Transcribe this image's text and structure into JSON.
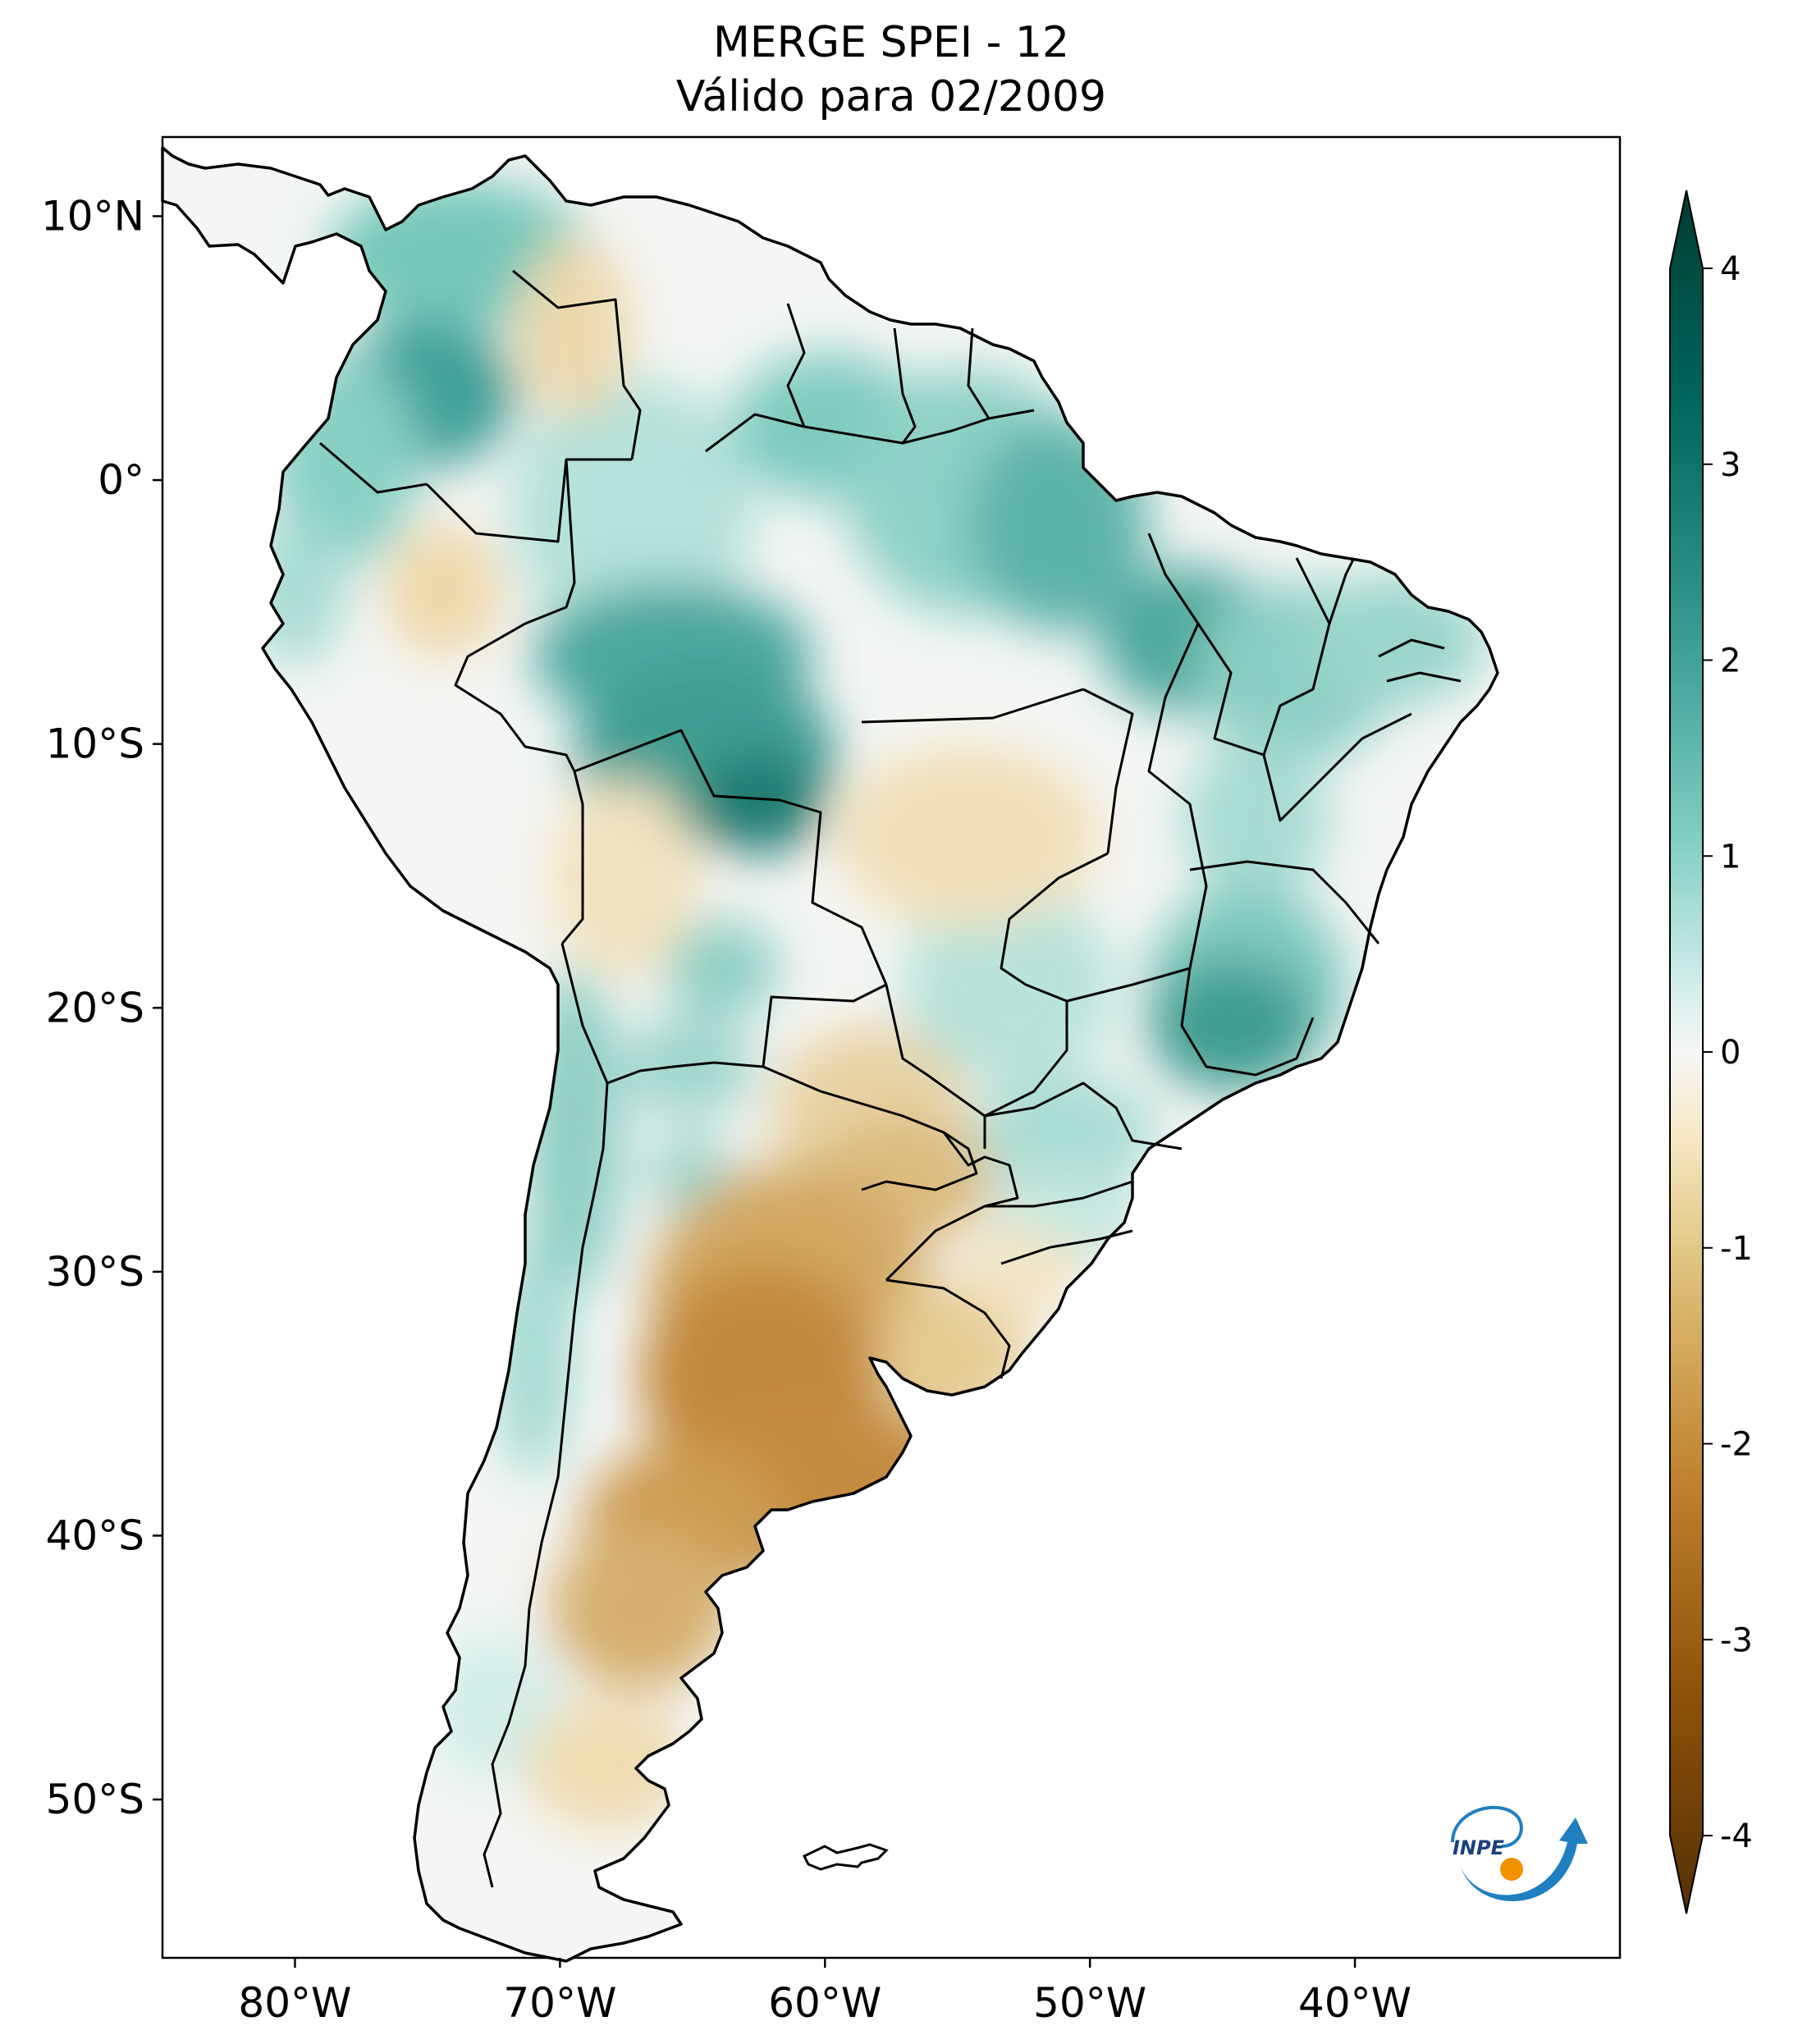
{
  "title": {
    "line1": "MERGE   SPEI - 12",
    "line2": "Válido para 02/2009"
  },
  "axes": {
    "lon_ticks": [
      {
        "value": -80,
        "label": "80°W"
      },
      {
        "value": -70,
        "label": "70°W"
      },
      {
        "value": -60,
        "label": "60°W"
      },
      {
        "value": -50,
        "label": "50°W"
      },
      {
        "value": -40,
        "label": "40°W"
      }
    ],
    "lat_ticks": [
      {
        "value": 10,
        "label": "10°N"
      },
      {
        "value": 0,
        "label": "0°"
      },
      {
        "value": -10,
        "label": "10°S"
      },
      {
        "value": -20,
        "label": "20°S"
      },
      {
        "value": -30,
        "label": "30°S"
      },
      {
        "value": -40,
        "label": "40°S"
      },
      {
        "value": -50,
        "label": "50°S"
      }
    ],
    "lon_range": [
      -85,
      -30
    ],
    "lat_range": [
      -56,
      13
    ]
  },
  "colorbar": {
    "ticks": [
      {
        "value": 4,
        "label": "4"
      },
      {
        "value": 3,
        "label": "3"
      },
      {
        "value": 2,
        "label": "2"
      },
      {
        "value": 1,
        "label": "1"
      },
      {
        "value": 0,
        "label": "0"
      },
      {
        "value": -1,
        "label": "-1"
      },
      {
        "value": -2,
        "label": "-2"
      },
      {
        "value": -3,
        "label": "-3"
      },
      {
        "value": -4,
        "label": "-4"
      }
    ],
    "range": [
      -4,
      4
    ],
    "colors": {
      "very_wet": "#003c30",
      "wet": "#35978f",
      "slightly_wet": "#c7eae5",
      "neutral": "#f5f5f5",
      "slightly_dry": "#f6e8c3",
      "dry": "#bf812d",
      "very_dry": "#543005"
    }
  },
  "logo": {
    "text": "INPE",
    "icon": "inpe-logo-icon",
    "colors": {
      "arrow": "#1f7fc1",
      "dot": "#f39200"
    }
  }
}
